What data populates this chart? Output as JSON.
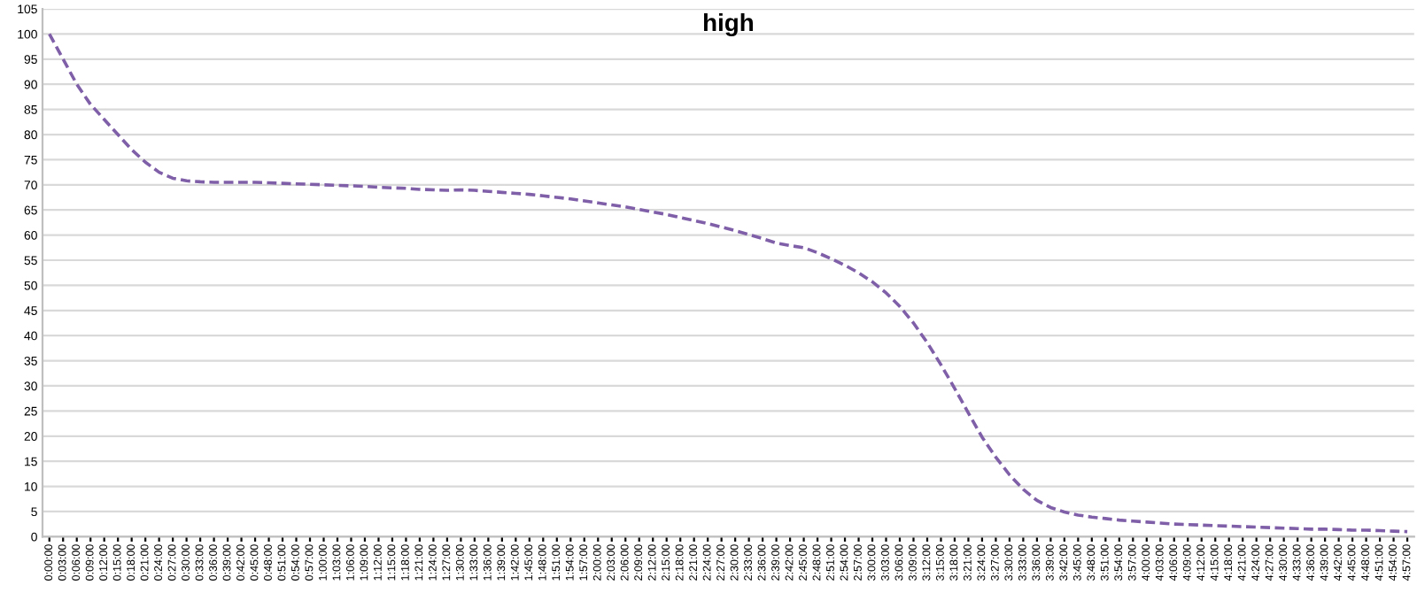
{
  "chart_data": {
    "type": "line",
    "title": "high",
    "categories": [
      "0:00:00",
      "0:03:00",
      "0:06:00",
      "0:09:00",
      "0:12:00",
      "0:15:00",
      "0:18:00",
      "0:21:00",
      "0:24:00",
      "0:27:00",
      "0:30:00",
      "0:33:00",
      "0:36:00",
      "0:39:00",
      "0:42:00",
      "0:45:00",
      "0:48:00",
      "0:51:00",
      "0:54:00",
      "0:57:00",
      "1:00:00",
      "1:03:00",
      "1:06:00",
      "1:09:00",
      "1:12:00",
      "1:15:00",
      "1:18:00",
      "1:21:00",
      "1:24:00",
      "1:27:00",
      "1:30:00",
      "1:33:00",
      "1:36:00",
      "1:39:00",
      "1:42:00",
      "1:45:00",
      "1:48:00",
      "1:51:00",
      "1:54:00",
      "1:57:00",
      "2:00:00",
      "2:03:00",
      "2:06:00",
      "2:09:00",
      "2:12:00",
      "2:15:00",
      "2:18:00",
      "2:21:00",
      "2:24:00",
      "2:27:00",
      "2:30:00",
      "2:33:00",
      "2:36:00",
      "2:39:00",
      "2:42:00",
      "2:45:00",
      "2:48:00",
      "2:51:00",
      "2:54:00",
      "2:57:00",
      "3:00:00",
      "3:03:00",
      "3:06:00",
      "3:09:00",
      "3:12:00",
      "3:15:00",
      "3:18:00",
      "3:21:00",
      "3:24:00",
      "3:27:00",
      "3:30:00",
      "3:33:00",
      "3:36:00",
      "3:39:00",
      "3:42:00",
      "3:45:00",
      "3:48:00",
      "3:51:00",
      "3:54:00",
      "3:57:00",
      "4:00:00",
      "4:03:00",
      "4:06:00",
      "4:09:00",
      "4:12:00",
      "4:15:00",
      "4:18:00",
      "4:21:00",
      "4:24:00",
      "4:27:00",
      "4:30:00",
      "4:33:00",
      "4:36:00",
      "4:39:00",
      "4:42:00",
      "4:45:00",
      "4:48:00",
      "4:51:00",
      "4:54:00",
      "4:57:00"
    ],
    "series": [
      {
        "color": "#7f5fa8",
        "values": [
          100,
          95,
          90,
          86,
          83,
          80,
          77,
          74.5,
          72.5,
          71.3,
          70.8,
          70.6,
          70.5,
          70.5,
          70.5,
          70.5,
          70.4,
          70.3,
          70.2,
          70.1,
          70,
          69.9,
          69.8,
          69.7,
          69.5,
          69.4,
          69.3,
          69.1,
          69,
          68.9,
          69,
          68.9,
          68.7,
          68.5,
          68.3,
          68.1,
          67.8,
          67.5,
          67.2,
          66.8,
          66.4,
          66,
          65.6,
          65.1,
          64.6,
          64.1,
          63.5,
          62.9,
          62.3,
          61.6,
          60.9,
          60.1,
          59.3,
          58.4,
          57.9,
          57.5,
          56.5,
          55.3,
          54,
          52.5,
          50.7,
          48.5,
          45.8,
          42.5,
          38.6,
          34.2,
          29.5,
          24.6,
          19.8,
          15.8,
          12.3,
          9.4,
          7.2,
          5.8,
          4.9,
          4.3,
          3.9,
          3.6,
          3.3,
          3.1,
          2.9,
          2.7,
          2.5,
          2.4,
          2.3,
          2.2,
          2.1,
          2,
          1.9,
          1.8,
          1.7,
          1.6,
          1.5,
          1.5,
          1.4,
          1.3,
          1.3,
          1.2,
          1.1,
          1.0
        ]
      }
    ],
    "ylim": [
      0,
      105
    ],
    "yticks": [
      0,
      5,
      10,
      15,
      20,
      25,
      30,
      35,
      40,
      45,
      50,
      55,
      60,
      65,
      70,
      75,
      80,
      85,
      90,
      95,
      100,
      105
    ],
    "grid": "y",
    "line_style": "dashed",
    "marker": "none"
  }
}
